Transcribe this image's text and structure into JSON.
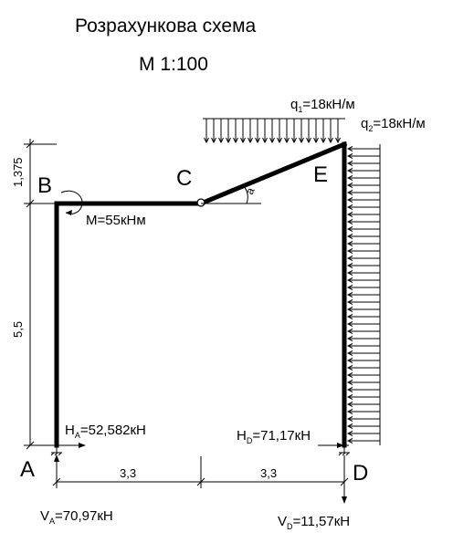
{
  "title": "Розрахункова схема",
  "scale": "М  1:100",
  "nodes": {
    "a": "A",
    "b": "B",
    "c": "C",
    "d": "D",
    "e": "E"
  },
  "loads": {
    "q1_prefix": "q",
    "q1_sub": "1",
    "q1_value": "=18кН/м",
    "q2_prefix": "q",
    "q2_sub": "2",
    "q2_value": "=18кН/м",
    "moment": "M=55кНм",
    "angle": "a"
  },
  "reactions": {
    "ha_prefix": "H",
    "ha_sub": "A",
    "ha_value": "=52,582кН",
    "hd_prefix": "H",
    "hd_sub": "D",
    "hd_value": "=71,17кН",
    "va_prefix": "V",
    "va_sub": "A",
    "va_value": "=70,97кН",
    "vd_prefix": "V",
    "vd_sub": "D",
    "vd_value": "=11,57кН"
  },
  "dimensions": {
    "top_height": "1,375",
    "height": "5,5",
    "span_left": "3,3",
    "span_right": "3,3"
  }
}
